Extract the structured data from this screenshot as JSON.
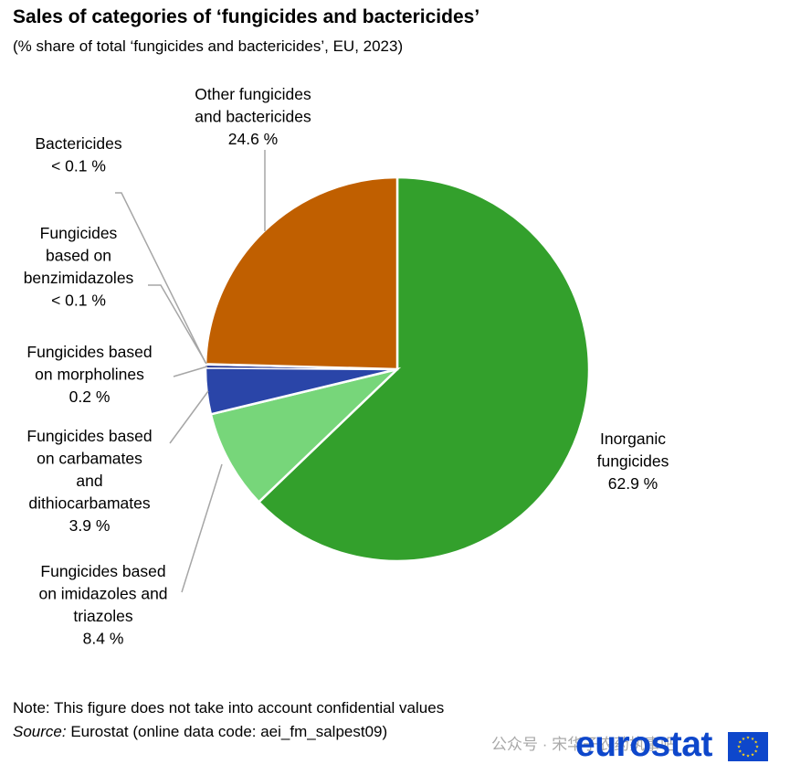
{
  "title": "Sales of categories of ‘fungicides and bactericides’",
  "subtitle": "(% share of total ‘fungicides  and bactericides’, EU, 2023)",
  "chart_data": {
    "type": "pie",
    "slices": [
      {
        "label": [
          "Inorganic",
          "fungicides",
          "62.9 %"
        ],
        "value": 62.9,
        "color": "#33a02c"
      },
      {
        "label": [
          "Fungicides based",
          "on imidazoles and",
          "triazoles",
          "8.4 %"
        ],
        "value": 8.4,
        "color": "#77d67a"
      },
      {
        "label": [
          "Fungicides based",
          "on carbamates",
          "and",
          "dithiocarbamates",
          "3.9 %"
        ],
        "value": 3.9,
        "color": "#2a45a8"
      },
      {
        "label": [
          "Fungicides based",
          "on morpholines",
          "0.2 %"
        ],
        "value": 0.2,
        "color": "#1e3090"
      },
      {
        "label": [
          "Fungicides",
          "based on",
          "benzimidazoles",
          "< 0.1 %"
        ],
        "value": 0.05,
        "color": "#888888"
      },
      {
        "label": [
          "Bactericides",
          "< 0.1 %"
        ],
        "value": 0.05,
        "color": "#aaaaaa"
      },
      {
        "label": [
          "Other fungicides",
          "and bactericides",
          "24.6 %"
        ],
        "value": 24.6,
        "color": "#c05f00"
      }
    ]
  },
  "footer": {
    "note": "Note: This figure does not take into account confidential values",
    "source_label": "Source:",
    "source_text": " Eurostat (online data code: aei_fm_salpest09)"
  },
  "brand": {
    "logo_text": "eurostat",
    "flag_color": "#0e47cb",
    "star_color": "#ffd617"
  },
  "watermark": "公众号 · 宋华子农药执事吧"
}
